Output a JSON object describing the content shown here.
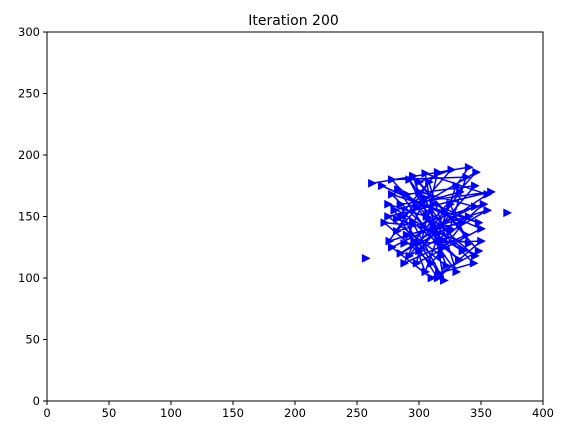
{
  "chart_data": {
    "type": "line",
    "title": "Iteration 200",
    "xlabel": "",
    "ylabel": "",
    "xlim": [
      0,
      400
    ],
    "ylim": [
      0,
      300
    ],
    "x_ticks": [
      0,
      50,
      100,
      150,
      200,
      250,
      300,
      350,
      400
    ],
    "y_ticks": [
      0,
      50,
      100,
      150,
      200,
      250,
      300
    ],
    "x_tick_labels": [
      "0",
      "50",
      "100",
      "150",
      "200",
      "250",
      "300",
      "350",
      "400"
    ],
    "y_tick_labels": [
      "0",
      "50",
      "100",
      "150",
      "200",
      "250",
      "300"
    ],
    "grid": false,
    "legend": "none",
    "marker": "right-pointing triangle",
    "color": "#0000ff",
    "series": [
      {
        "points": [
          [
            262,
            177
          ],
          [
            340,
            190
          ],
          [
            330,
            175
          ],
          [
            305,
            105
          ],
          [
            285,
            160
          ],
          [
            358,
            170
          ],
          [
            275,
            150
          ],
          [
            318,
            118
          ],
          [
            295,
            183
          ],
          [
            348,
            122
          ],
          [
            310,
            100
          ],
          [
            278,
            125
          ],
          [
            345,
            158
          ],
          [
            300,
            170
          ],
          [
            322,
            110
          ],
          [
            290,
            135
          ],
          [
            335,
            145
          ],
          [
            270,
            175
          ],
          [
            350,
            140
          ],
          [
            298,
            112
          ],
          [
            315,
            186
          ],
          [
            282,
            148
          ],
          [
            340,
            128
          ],
          [
            325,
            160
          ],
          [
            292,
            118
          ],
          [
            355,
            155
          ],
          [
            276,
            130
          ],
          [
            308,
            178
          ],
          [
            330,
            105
          ],
          [
            283,
            172
          ],
          [
            345,
            118
          ],
          [
            312,
            140
          ],
          [
            298,
            158
          ],
          [
            278,
            180
          ],
          [
            338,
            182
          ],
          [
            320,
            125
          ],
          [
            305,
            165
          ],
          [
            288,
            128
          ],
          [
            350,
            130
          ],
          [
            315,
            100
          ],
          [
            280,
            155
          ],
          [
            333,
            170
          ],
          [
            300,
            122
          ],
          [
            345,
            175
          ],
          [
            290,
            168
          ],
          [
            325,
            140
          ],
          [
            272,
            145
          ],
          [
            310,
            112
          ],
          [
            340,
            150
          ],
          [
            285,
            120
          ],
          [
            355,
            168
          ],
          [
            305,
            185
          ],
          [
            320,
            98
          ],
          [
            295,
            145
          ],
          [
            332,
            115
          ],
          [
            278,
            168
          ],
          [
            348,
            145
          ],
          [
            312,
            160
          ],
          [
            288,
            112
          ],
          [
            338,
            135
          ],
          [
            300,
            178
          ],
          [
            326,
            188
          ],
          [
            282,
            138
          ],
          [
            352,
            160
          ],
          [
            318,
            130
          ],
          [
            292,
            180
          ],
          [
            335,
            122
          ],
          [
            275,
            160
          ],
          [
            306,
            150
          ],
          [
            344,
            112
          ],
          [
            316,
            104
          ],
          [
            286,
            150
          ],
          [
            346,
            186
          ],
          [
            296,
            130
          ]
        ]
      },
      {
        "points": [
          [
            257,
            116
          ]
        ]
      },
      {
        "points": [
          [
            371,
            153
          ]
        ]
      }
    ]
  }
}
